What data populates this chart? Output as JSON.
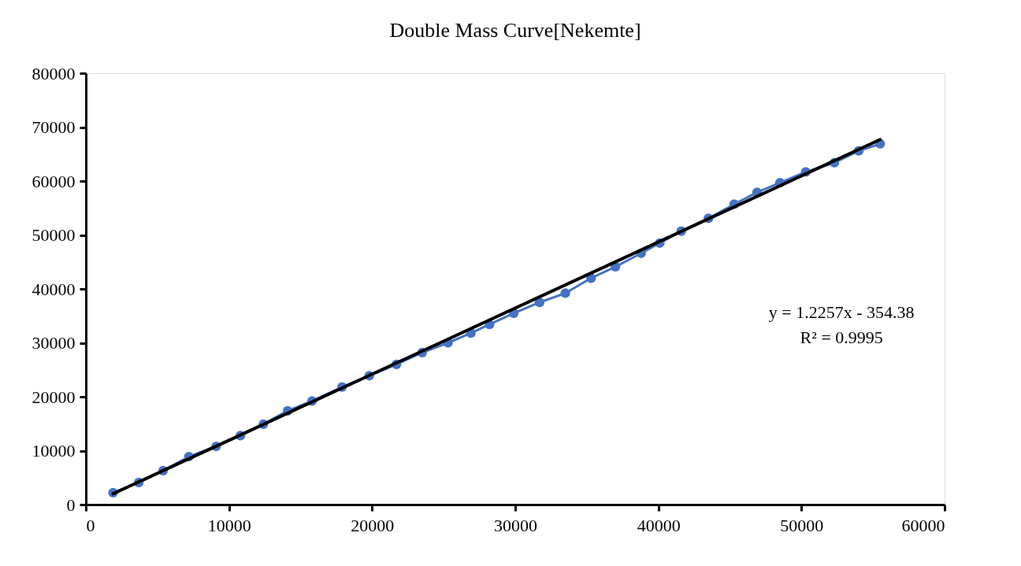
{
  "chart_data": {
    "type": "line",
    "title": "Double Mass Curve[Nekemte]",
    "x": [
      1900,
      3700,
      5400,
      7200,
      9100,
      10800,
      12400,
      14100,
      15800,
      17900,
      19800,
      21700,
      23500,
      25300,
      26900,
      28200,
      29900,
      31700,
      33500,
      35300,
      37000,
      38800,
      40100,
      41600,
      43500,
      45300,
      46900,
      48500,
      50300,
      52300,
      54000,
      55500
    ],
    "series": [
      {
        "color": "#4472c4",
        "marker": "circle",
        "values": [
          2200,
          4100,
          6300,
          8900,
          10800,
          12800,
          14900,
          17400,
          19200,
          21800,
          23900,
          26000,
          28200,
          30000,
          31800,
          33400,
          35500,
          37500,
          39200,
          42000,
          44100,
          46600,
          48500,
          50700,
          53100,
          55700,
          57900,
          59700,
          61700,
          63400,
          65600,
          66900
        ]
      },
      {
        "type": "line",
        "color": "#000000",
        "marker": "none",
        "x": [
          1900,
          55500
        ],
        "values": [
          2000,
          67700
        ]
      }
    ],
    "xlim": [
      0,
      60000
    ],
    "xticks": [
      0,
      10000,
      20000,
      30000,
      40000,
      50000,
      60000
    ],
    "ylim": [
      0,
      80000
    ],
    "yticks": [
      0,
      10000,
      20000,
      30000,
      40000,
      50000,
      60000,
      70000,
      80000
    ],
    "grid": false,
    "legend": false,
    "annotations": [
      "y = 1.2257x - 354.38",
      "R² = 0.9995"
    ]
  }
}
